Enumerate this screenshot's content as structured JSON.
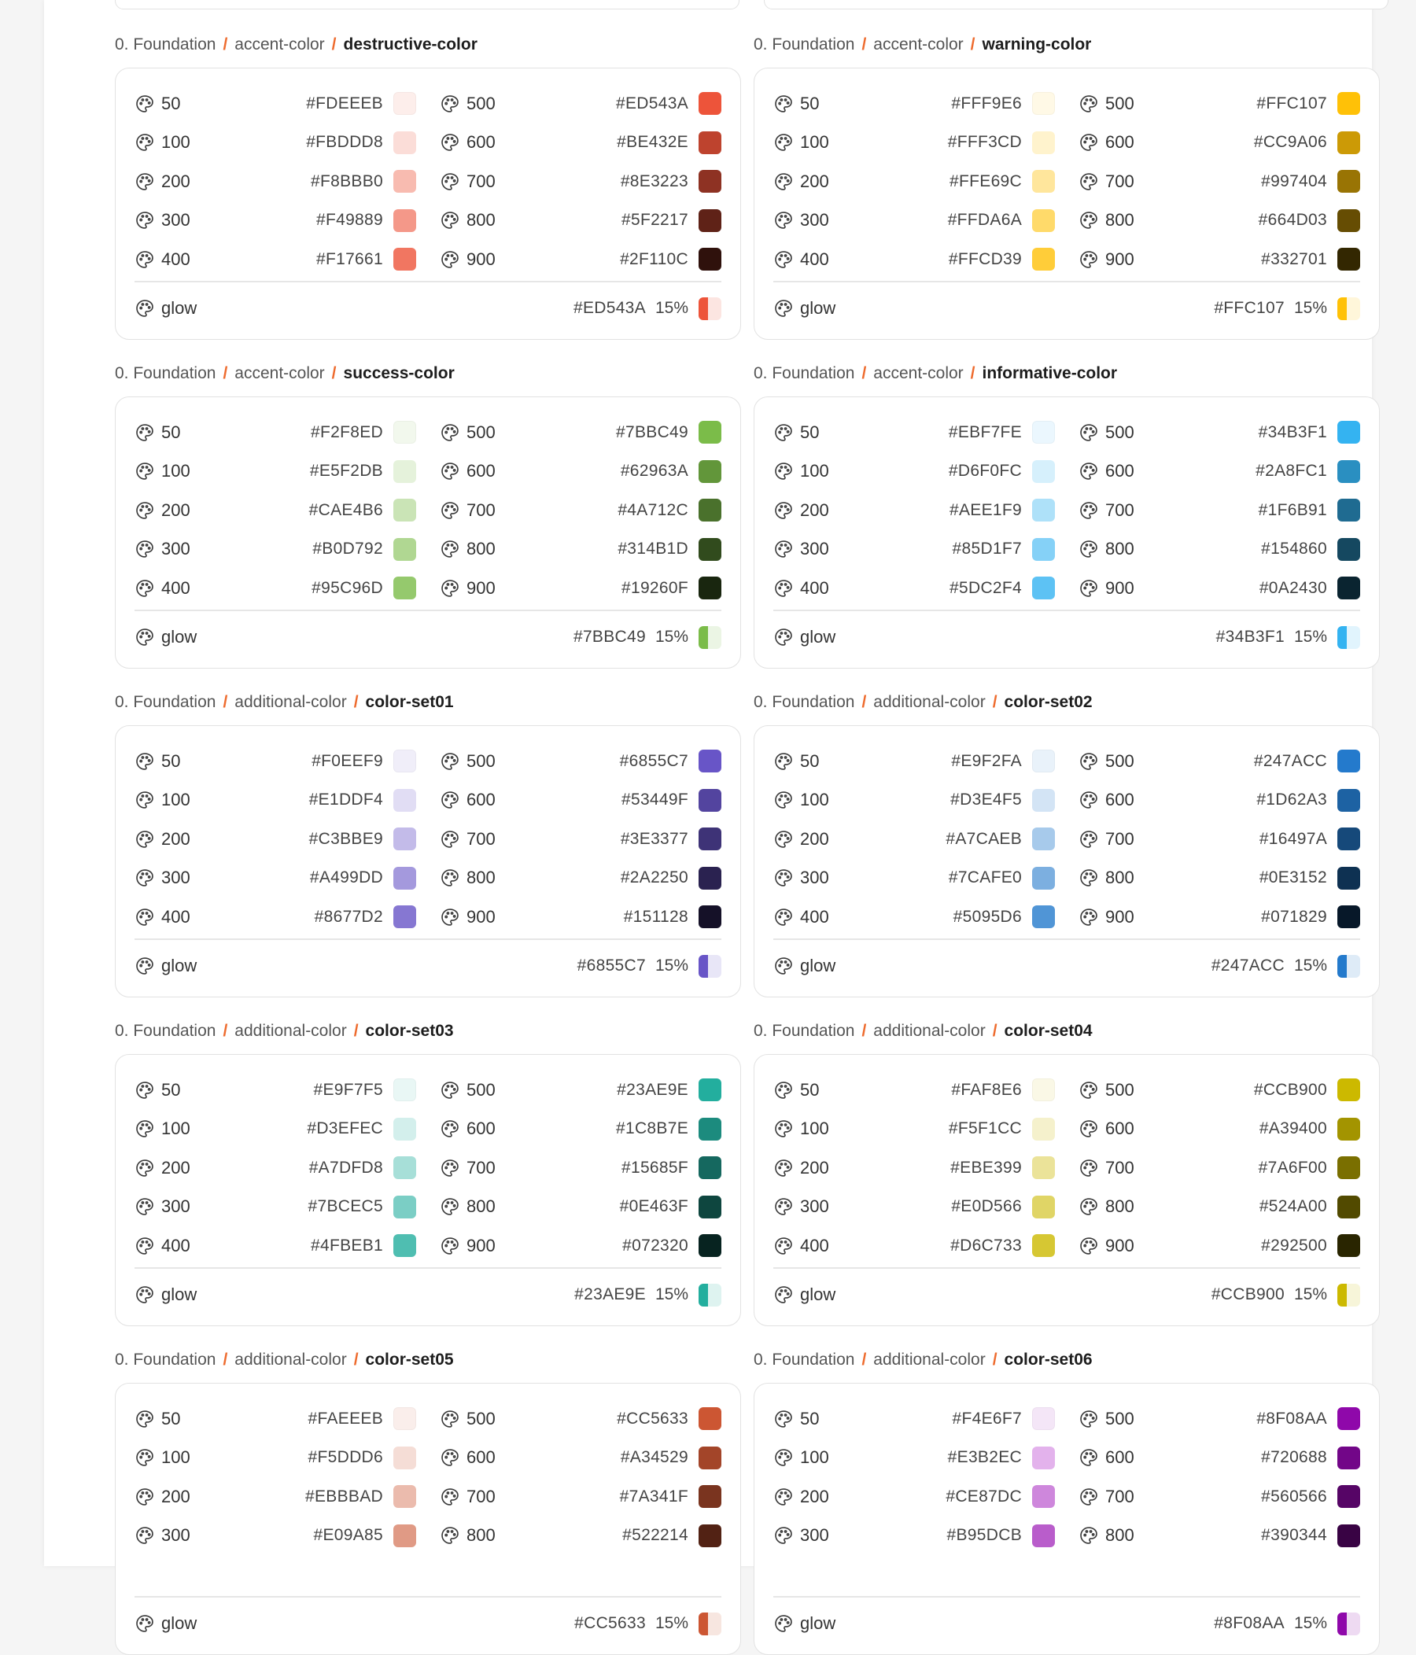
{
  "pct_label": "15%",
  "glow_label": "glow",
  "sections": [
    {
      "crumb": [
        "0. Foundation",
        "accent-color",
        "destructive-color"
      ],
      "left": [
        [
          "50",
          "#FDEEEB"
        ],
        [
          "100",
          "#FBDDD8"
        ],
        [
          "200",
          "#F8BBB0"
        ],
        [
          "300",
          "#F49889"
        ],
        [
          "400",
          "#F17661"
        ]
      ],
      "right": [
        [
          "500",
          "#ED543A"
        ],
        [
          "600",
          "#BE432E"
        ],
        [
          "700",
          "#8E3223"
        ],
        [
          "800",
          "#5F2217"
        ],
        [
          "900",
          "#2F110C"
        ]
      ],
      "glow": "#ED543A"
    },
    {
      "crumb": [
        "0. Foundation",
        "accent-color",
        "warning-color"
      ],
      "left": [
        [
          "50",
          "#FFF9E6"
        ],
        [
          "100",
          "#FFF3CD"
        ],
        [
          "200",
          "#FFE69C"
        ],
        [
          "300",
          "#FFDA6A"
        ],
        [
          "400",
          "#FFCD39"
        ]
      ],
      "right": [
        [
          "500",
          "#FFC107"
        ],
        [
          "600",
          "#CC9A06"
        ],
        [
          "700",
          "#997404"
        ],
        [
          "800",
          "#664D03"
        ],
        [
          "900",
          "#332701"
        ]
      ],
      "glow": "#FFC107"
    },
    {
      "crumb": [
        "0. Foundation",
        "accent-color",
        "success-color"
      ],
      "left": [
        [
          "50",
          "#F2F8ED"
        ],
        [
          "100",
          "#E5F2DB"
        ],
        [
          "200",
          "#CAE4B6"
        ],
        [
          "300",
          "#B0D792"
        ],
        [
          "400",
          "#95C96D"
        ]
      ],
      "right": [
        [
          "500",
          "#7BBC49"
        ],
        [
          "600",
          "#62963A"
        ],
        [
          "700",
          "#4A712C"
        ],
        [
          "800",
          "#314B1D"
        ],
        [
          "900",
          "#19260F"
        ]
      ],
      "glow": "#7BBC49"
    },
    {
      "crumb": [
        "0. Foundation",
        "accent-color",
        "informative-color"
      ],
      "left": [
        [
          "50",
          "#EBF7FE"
        ],
        [
          "100",
          "#D6F0FC"
        ],
        [
          "200",
          "#AEE1F9"
        ],
        [
          "300",
          "#85D1F7"
        ],
        [
          "400",
          "#5DC2F4"
        ]
      ],
      "right": [
        [
          "500",
          "#34B3F1"
        ],
        [
          "600",
          "#2A8FC1"
        ],
        [
          "700",
          "#1F6B91"
        ],
        [
          "800",
          "#154860"
        ],
        [
          "900",
          "#0A2430"
        ]
      ],
      "glow": "#34B3F1"
    },
    {
      "crumb": [
        "0. Foundation",
        "additional-color",
        "color-set01"
      ],
      "left": [
        [
          "50",
          "#F0EEF9"
        ],
        [
          "100",
          "#E1DDF4"
        ],
        [
          "200",
          "#C3BBE9"
        ],
        [
          "300",
          "#A499DD"
        ],
        [
          "400",
          "#8677D2"
        ]
      ],
      "right": [
        [
          "500",
          "#6855C7"
        ],
        [
          "600",
          "#53449F"
        ],
        [
          "700",
          "#3E3377"
        ],
        [
          "800",
          "#2A2250"
        ],
        [
          "900",
          "#151128"
        ]
      ],
      "glow": "#6855C7"
    },
    {
      "crumb": [
        "0. Foundation",
        "additional-color",
        "color-set02"
      ],
      "left": [
        [
          "50",
          "#E9F2FA"
        ],
        [
          "100",
          "#D3E4F5"
        ],
        [
          "200",
          "#A7CAEB"
        ],
        [
          "300",
          "#7CAFE0"
        ],
        [
          "400",
          "#5095D6"
        ]
      ],
      "right": [
        [
          "500",
          "#247ACC"
        ],
        [
          "600",
          "#1D62A3"
        ],
        [
          "700",
          "#16497A"
        ],
        [
          "800",
          "#0E3152"
        ],
        [
          "900",
          "#071829"
        ]
      ],
      "glow": "#247ACC"
    },
    {
      "crumb": [
        "0. Foundation",
        "additional-color",
        "color-set03"
      ],
      "left": [
        [
          "50",
          "#E9F7F5"
        ],
        [
          "100",
          "#D3EFEC"
        ],
        [
          "200",
          "#A7DFD8"
        ],
        [
          "300",
          "#7BCEC5"
        ],
        [
          "400",
          "#4FBEB1"
        ]
      ],
      "right": [
        [
          "500",
          "#23AE9E"
        ],
        [
          "600",
          "#1C8B7E"
        ],
        [
          "700",
          "#15685F"
        ],
        [
          "800",
          "#0E463F"
        ],
        [
          "900",
          "#072320"
        ]
      ],
      "glow": "#23AE9E"
    },
    {
      "crumb": [
        "0. Foundation",
        "additional-color",
        "color-set04"
      ],
      "left": [
        [
          "50",
          "#FAF8E6"
        ],
        [
          "100",
          "#F5F1CC"
        ],
        [
          "200",
          "#EBE399"
        ],
        [
          "300",
          "#E0D566"
        ],
        [
          "400",
          "#D6C733"
        ]
      ],
      "right": [
        [
          "500",
          "#CCB900"
        ],
        [
          "600",
          "#A39400"
        ],
        [
          "700",
          "#7A6F00"
        ],
        [
          "800",
          "#524A00"
        ],
        [
          "900",
          "#292500"
        ]
      ],
      "glow": "#CCB900"
    },
    {
      "crumb": [
        "0. Foundation",
        "additional-color",
        "color-set05"
      ],
      "left": [
        [
          "50",
          "#FAEEEB"
        ],
        [
          "100",
          "#F5DDD6"
        ],
        [
          "200",
          "#EBBBAD"
        ],
        [
          "300",
          "#E09A85"
        ]
      ],
      "right": [
        [
          "500",
          "#CC5633"
        ],
        [
          "600",
          "#A34529"
        ],
        [
          "700",
          "#7A341F"
        ],
        [
          "800",
          "#522214"
        ]
      ],
      "glow": "#CC5633"
    },
    {
      "crumb": [
        "0. Foundation",
        "additional-color",
        "color-set06"
      ],
      "left": [
        [
          "50",
          "#F4E6F7"
        ],
        [
          "100",
          "#E3B2EC"
        ],
        [
          "200",
          "#CE87DC"
        ],
        [
          "300",
          "#B95DCB"
        ]
      ],
      "right": [
        [
          "500",
          "#8F08AA"
        ],
        [
          "600",
          "#720688"
        ],
        [
          "700",
          "#560566"
        ],
        [
          "800",
          "#390344"
        ]
      ],
      "glow": "#8F08AA"
    }
  ]
}
